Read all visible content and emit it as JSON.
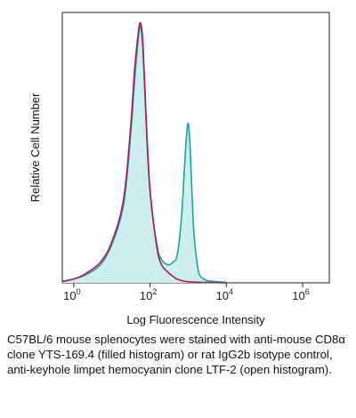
{
  "chart_data": {
    "type": "area",
    "xscale": "log",
    "xlim": [
      0.5,
      5000000
    ],
    "ylim": [
      0,
      105
    ],
    "xlabel": "Log Fluorescence Intensity",
    "ylabel": "Relative Cell Number",
    "xticks": [
      {
        "value": 1,
        "base": "10",
        "exp": "0"
      },
      {
        "value": 100,
        "base": "10",
        "exp": "2"
      },
      {
        "value": 10000,
        "base": "10",
        "exp": "4"
      },
      {
        "value": 1000000,
        "base": "10",
        "exp": "6"
      }
    ],
    "series": [
      {
        "style": "filled",
        "color": "#1aa3a3",
        "fill": "#cdeeee",
        "x": [
          0.5,
          1,
          2,
          5,
          10,
          20,
          30,
          40,
          50,
          55,
          60,
          65,
          70,
          80,
          100,
          150,
          200,
          300,
          400,
          500,
          600,
          700,
          800,
          900,
          1000,
          1100,
          1200,
          1400,
          1700,
          2000,
          3000,
          5000,
          10000
        ],
        "y": [
          0.5,
          1.5,
          3,
          7,
          15,
          30,
          55,
          80,
          96,
          100,
          97,
          90,
          80,
          60,
          35,
          15,
          9,
          7,
          8,
          10,
          18,
          30,
          45,
          57,
          62,
          55,
          42,
          20,
          8,
          3,
          1,
          0.5,
          0.2
        ]
      },
      {
        "style": "open",
        "color": "#b0185a",
        "x": [
          0.5,
          1,
          2,
          5,
          10,
          20,
          30,
          40,
          50,
          55,
          60,
          65,
          70,
          80,
          100,
          150,
          200,
          300,
          400,
          500,
          700,
          1000,
          2000,
          5000,
          10000
        ],
        "y": [
          0.5,
          1.5,
          3.5,
          8,
          16,
          32,
          58,
          84,
          98,
          101,
          99,
          93,
          82,
          62,
          36,
          14,
          7,
          4,
          2.5,
          1.5,
          0.8,
          0.4,
          0.2,
          0.1,
          0
        ]
      }
    ]
  },
  "caption": "C57BL/6 mouse splenocytes were stained with anti-mouse CD8α clone YTS-169.4 (filled histogram) or rat IgG2b isotype control, anti-keyhole limpet hemocyanin clone LTF-2 (open histogram)."
}
